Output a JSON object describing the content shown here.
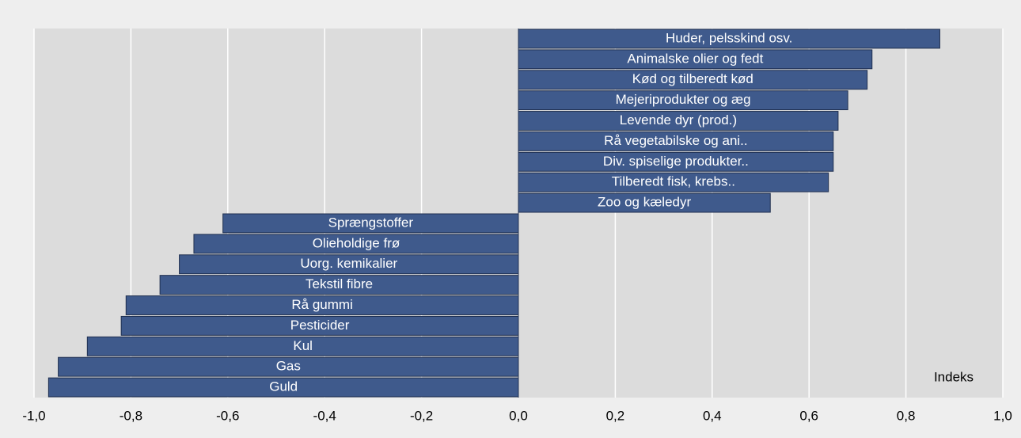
{
  "chart_data": {
    "type": "barh",
    "annotation": "Indeks",
    "categories": [
      "Huder, pelsskind osv.",
      "Animalske olier og fedt",
      "Kød og tilberedt kød",
      "Mejeriprodukter og æg",
      "Levende dyr (prod.)",
      "Rå vegetabilske og ani..",
      "Div. spiselige produkter..",
      "Tilberedt fisk, krebs..",
      "Zoo og kæledyr",
      "Sprængstoffer",
      "Olieholdige frø",
      "Uorg. kemikalier",
      "Tekstil fibre",
      "Rå gummi",
      "Pesticider",
      "Kul",
      "Gas",
      "Guld"
    ],
    "values": [
      0.87,
      0.73,
      0.72,
      0.68,
      0.66,
      0.65,
      0.65,
      0.64,
      0.52,
      -0.61,
      -0.67,
      -0.7,
      -0.74,
      -0.81,
      -0.82,
      -0.89,
      -0.95,
      -0.97
    ],
    "color": "#3f5a8c",
    "xlim": [
      -1.0,
      1.0
    ],
    "xticks": [
      {
        "value": -1.0,
        "label": "-1,0"
      },
      {
        "value": -0.8,
        "label": "-0,8"
      },
      {
        "value": -0.6,
        "label": "-0,6"
      },
      {
        "value": -0.4,
        "label": "-0,4"
      },
      {
        "value": -0.2,
        "label": "-0,2"
      },
      {
        "value": 0.0,
        "label": "0,0"
      },
      {
        "value": 0.2,
        "label": "0,2"
      },
      {
        "value": 0.4,
        "label": "0,4"
      },
      {
        "value": 0.6,
        "label": "0,6"
      },
      {
        "value": 0.8,
        "label": "0,8"
      },
      {
        "value": 1.0,
        "label": "1,0"
      }
    ],
    "grid": true
  }
}
